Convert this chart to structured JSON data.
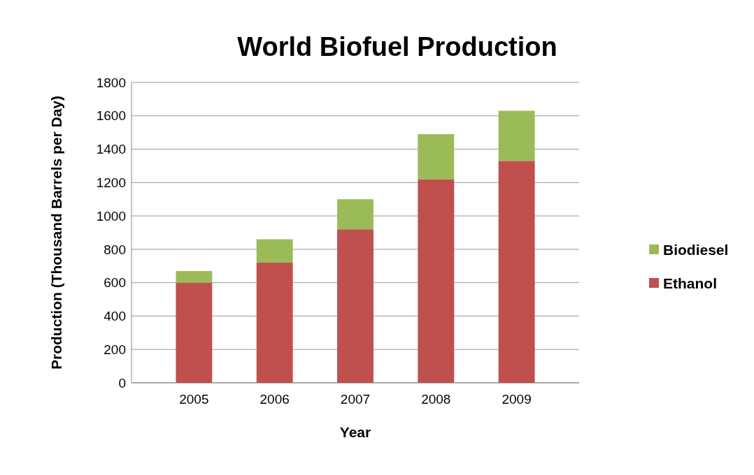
{
  "chart_data": {
    "type": "bar",
    "title": "World Biofuel Production",
    "xlabel": "Year",
    "ylabel": "Production (Thousand Barrels per Day)",
    "categories": [
      "2005",
      "2006",
      "2007",
      "2008",
      "2009"
    ],
    "stacked": true,
    "series": [
      {
        "name": "Ethanol",
        "color": "#c0504d",
        "values": [
          600,
          720,
          920,
          1220,
          1330
        ]
      },
      {
        "name": "Biodiesel",
        "color": "#9bbb59",
        "values": [
          70,
          140,
          180,
          270,
          300
        ]
      }
    ],
    "ylim": [
      0,
      1800
    ],
    "yticks": [
      0,
      200,
      400,
      600,
      800,
      1000,
      1200,
      1400,
      1600,
      1800
    ],
    "grid": "y",
    "legend": "right"
  }
}
